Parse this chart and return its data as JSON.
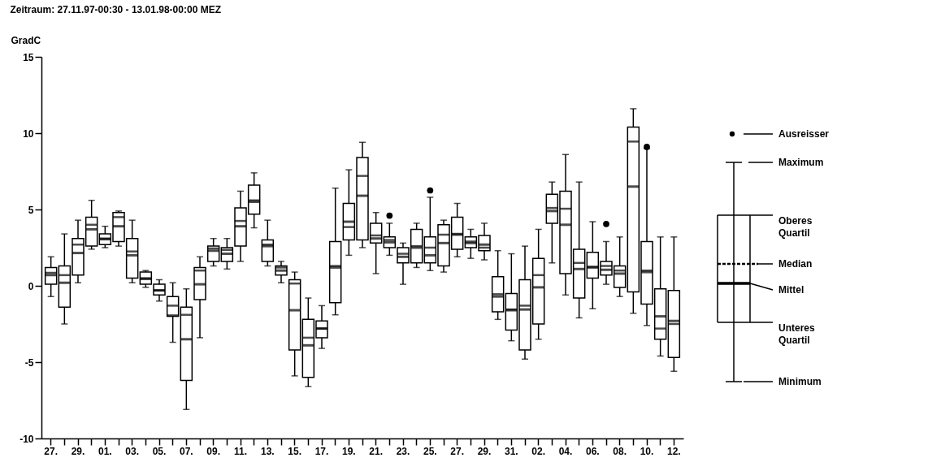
{
  "chart_data": {
    "type": "box",
    "title": "Zeitraum: 27.11.97-00:30 - 13.01.98-00:00 MEZ",
    "ylabel": "GradC",
    "categories": [
      "27.",
      null,
      "29.",
      null,
      "01.",
      null,
      "03.",
      null,
      "05.",
      null,
      "07.",
      null,
      "09.",
      null,
      "11.",
      null,
      "13.",
      null,
      "15.",
      null,
      "17.",
      null,
      "19.",
      null,
      "21.",
      null,
      "23.",
      null,
      "25.",
      null,
      "27.",
      null,
      "29.",
      null,
      "31.",
      null,
      "02.",
      null,
      "04.",
      null,
      "06.",
      null,
      "08.",
      null,
      "10.",
      null,
      "12."
    ],
    "ylim": [
      -10,
      15
    ],
    "yticks": [
      -10,
      -5,
      0,
      5,
      10,
      15
    ],
    "grid": false,
    "boxes": [
      {
        "low": -0.7,
        "q1": 0.1,
        "median": 0.85,
        "q3": 1.2,
        "high": 1.9,
        "mean": 0.7
      },
      {
        "low": -2.5,
        "q1": -1.4,
        "median": 0.7,
        "q3": 1.3,
        "high": 3.4,
        "mean": 0.2
      },
      {
        "low": 0.2,
        "q1": 0.7,
        "median": 2.7,
        "q3": 3.1,
        "high": 4.3,
        "mean": 2.15
      },
      {
        "low": 2.4,
        "q1": 2.6,
        "median": 4.0,
        "q3": 4.5,
        "high": 5.6,
        "mean": 3.7
      },
      {
        "low": 2.5,
        "q1": 2.7,
        "median": 3.1,
        "q3": 3.4,
        "high": 3.9,
        "mean": 3.05
      },
      {
        "low": 2.6,
        "q1": 2.9,
        "median": 4.5,
        "q3": 4.8,
        "high": 4.9,
        "mean": 3.9
      },
      {
        "low": 0.2,
        "q1": 0.5,
        "median": 2.25,
        "q3": 3.1,
        "high": 4.3,
        "mean": 2.0
      },
      {
        "low": -0.1,
        "q1": 0.1,
        "median": 0.5,
        "q3": 0.9,
        "high": 1.0,
        "mean": 0.45
      },
      {
        "low": -1.0,
        "q1": -0.6,
        "median": -0.3,
        "q3": 0.1,
        "high": 0.4,
        "mean": -0.3
      },
      {
        "low": -3.7,
        "q1": -2.0,
        "median": -1.3,
        "q3": -0.7,
        "high": 0.2,
        "mean": -1.95
      },
      {
        "low": -8.1,
        "q1": -6.2,
        "median": -1.9,
        "q3": -1.4,
        "high": -0.2,
        "mean": -3.5
      },
      {
        "low": -3.4,
        "q1": -0.9,
        "median": 1.0,
        "q3": 1.2,
        "high": 1.9,
        "mean": 0.1
      },
      {
        "low": 1.3,
        "q1": 1.6,
        "median": 2.45,
        "q3": 2.6,
        "high": 3.1,
        "mean": 2.3
      },
      {
        "low": 1.1,
        "q1": 1.6,
        "median": 2.35,
        "q3": 2.5,
        "high": 3.1,
        "mean": 2.1
      },
      {
        "low": 1.6,
        "q1": 2.6,
        "median": 4.25,
        "q3": 5.1,
        "high": 6.2,
        "mean": 3.9
      },
      {
        "low": 3.8,
        "q1": 4.7,
        "median": 5.6,
        "q3": 6.6,
        "high": 7.4,
        "mean": 5.5
      },
      {
        "low": 1.3,
        "q1": 1.6,
        "median": 2.7,
        "q3": 3.0,
        "high": 4.3,
        "mean": 2.6
      },
      {
        "low": 0.2,
        "q1": 0.7,
        "median": 1.2,
        "q3": 1.3,
        "high": 1.6,
        "mean": 1.0
      },
      {
        "low": -5.9,
        "q1": -4.2,
        "median": 0.15,
        "q3": 0.4,
        "high": 0.9,
        "mean": -1.6
      },
      {
        "low": -6.6,
        "q1": -6.0,
        "median": -3.4,
        "q3": -2.2,
        "high": -0.8,
        "mean": -3.9
      },
      {
        "low": -4.1,
        "q1": -3.4,
        "median": -2.8,
        "q3": -2.3,
        "high": -1.3,
        "mean": -2.8
      },
      {
        "low": -1.9,
        "q1": -1.1,
        "median": 1.3,
        "q3": 2.9,
        "high": 6.4,
        "mean": 1.2
      },
      {
        "low": 2.0,
        "q1": 3.0,
        "median": 3.85,
        "q3": 5.4,
        "high": 7.6,
        "mean": 4.2
      },
      {
        "low": 2.5,
        "q1": 3.0,
        "median": 7.2,
        "q3": 8.4,
        "high": 9.4,
        "mean": 5.9
      },
      {
        "low": 0.8,
        "q1": 2.8,
        "median": 3.3,
        "q3": 4.1,
        "high": 4.8,
        "mean": 3.1
      },
      {
        "low": 2.0,
        "q1": 2.5,
        "median": 3.0,
        "q3": 3.2,
        "high": 4.1,
        "mean": 2.85,
        "outliers": [
          4.6
        ]
      },
      {
        "low": 0.1,
        "q1": 1.5,
        "median": 2.1,
        "q3": 2.5,
        "high": 2.8,
        "mean": 1.9
      },
      {
        "low": 1.2,
        "q1": 1.5,
        "median": 2.6,
        "q3": 3.7,
        "high": 4.1,
        "mean": 2.5
      },
      {
        "low": 1.0,
        "q1": 1.5,
        "median": 2.5,
        "q3": 3.2,
        "high": 5.8,
        "mean": 2.0,
        "outliers": [
          6.25
        ]
      },
      {
        "low": 0.9,
        "q1": 1.3,
        "median": 3.35,
        "q3": 4.0,
        "high": 4.3,
        "mean": 2.8
      },
      {
        "low": 1.9,
        "q1": 2.4,
        "median": 3.4,
        "q3": 4.5,
        "high": 5.4,
        "mean": 3.35
      },
      {
        "low": 1.8,
        "q1": 2.5,
        "median": 2.9,
        "q3": 3.2,
        "high": 3.7,
        "mean": 2.8
      },
      {
        "low": 1.7,
        "q1": 2.3,
        "median": 2.5,
        "q3": 3.3,
        "high": 4.1,
        "mean": 2.7
      },
      {
        "low": -2.2,
        "q1": -1.7,
        "median": -0.55,
        "q3": 0.6,
        "high": 2.3,
        "mean": -0.7
      },
      {
        "low": -3.6,
        "q1": -2.9,
        "median": -1.55,
        "q3": -0.5,
        "high": 2.1,
        "mean": -1.6
      },
      {
        "low": -4.8,
        "q1": -4.2,
        "median": -1.3,
        "q3": 0.4,
        "high": 2.6,
        "mean": -1.55
      },
      {
        "low": -3.5,
        "q1": -2.5,
        "median": 0.7,
        "q3": 1.8,
        "high": 3.7,
        "mean": -0.1
      },
      {
        "low": 1.5,
        "q1": 4.1,
        "median": 5.1,
        "q3": 6.0,
        "high": 6.8,
        "mean": 4.9
      },
      {
        "low": -0.6,
        "q1": 0.8,
        "median": 5.05,
        "q3": 6.2,
        "high": 8.6,
        "mean": 4.0
      },
      {
        "low": -2.1,
        "q1": -0.8,
        "median": 1.5,
        "q3": 2.4,
        "high": 6.8,
        "mean": 1.1
      },
      {
        "low": -1.5,
        "q1": 0.5,
        "median": 1.25,
        "q3": 2.2,
        "high": 4.2,
        "mean": 1.2
      },
      {
        "low": 0.1,
        "q1": 0.7,
        "median": 1.3,
        "q3": 1.6,
        "high": 2.9,
        "mean": 1.05,
        "outliers": [
          4.05
        ]
      },
      {
        "low": -0.7,
        "q1": -0.1,
        "median": 1.0,
        "q3": 1.3,
        "high": 3.2,
        "mean": 0.8
      },
      {
        "low": -1.8,
        "q1": -0.4,
        "median": 9.45,
        "q3": 10.4,
        "high": 11.6,
        "mean": 6.5
      },
      {
        "low": -2.6,
        "q1": -1.2,
        "median": 1.0,
        "q3": 2.9,
        "high": 9.0,
        "mean": 0.9,
        "outliers": [
          9.1
        ]
      },
      {
        "low": -4.6,
        "q1": -3.5,
        "median": -2.8,
        "q3": -0.2,
        "high": 3.2,
        "mean": -2.0
      },
      {
        "low": -5.6,
        "q1": -4.7,
        "median": -2.5,
        "q3": -0.3,
        "high": 3.2,
        "mean": -2.3
      }
    ],
    "annotations": [
      "Ausreisser",
      "Maximum",
      "Oberes Quartil",
      "Median",
      "Mittel",
      "Unteres Quartil",
      "Minimum"
    ]
  }
}
